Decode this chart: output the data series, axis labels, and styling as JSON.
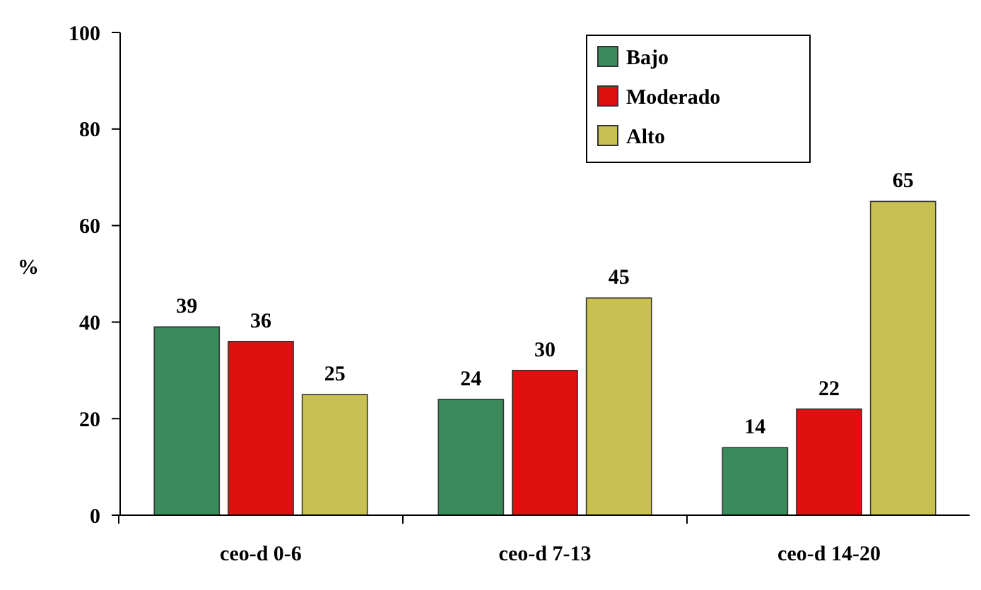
{
  "chart_data": {
    "type": "bar",
    "ylabel": "%",
    "categories": [
      "ceo-d 0-6",
      "ceo-d 7-13",
      "ceo-d 14-20"
    ],
    "series": [
      {
        "name": "Bajo",
        "color": "#3a8a5c",
        "values": [
          39,
          24,
          14
        ]
      },
      {
        "name": "Moderado",
        "color": "#e01010",
        "values": [
          36,
          30,
          22
        ]
      },
      {
        "name": "Alto",
        "color": "#c8c050",
        "values": [
          25,
          45,
          65
        ]
      }
    ],
    "ylim": [
      0,
      100
    ],
    "yticks": [
      0,
      20,
      40,
      60,
      80,
      100
    ],
    "data_labels": true,
    "legend": "top right"
  }
}
